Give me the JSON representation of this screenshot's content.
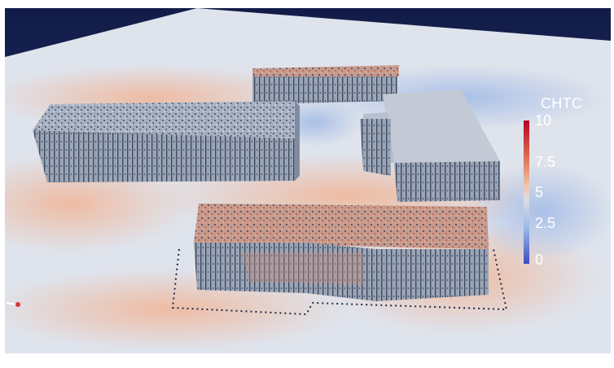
{
  "legend": {
    "title": "CHTC",
    "ticks": [
      {
        "label": "10",
        "value": 10
      },
      {
        "label": "7.5",
        "value": 7.5
      },
      {
        "label": "5",
        "value": 5
      },
      {
        "label": "2.5",
        "value": 2.5
      },
      {
        "label": "0",
        "value": 0
      }
    ],
    "colormap": [
      "#3b4cc0",
      "#9cb9e8",
      "#dcdde2",
      "#f3c3a7",
      "#dd6b4f",
      "#b40426"
    ]
  },
  "scene": {
    "background": "#1d2a5c",
    "ground": "#dfe3ec",
    "building_side": "#8d9aab",
    "building_top": "#b9c1cf"
  }
}
